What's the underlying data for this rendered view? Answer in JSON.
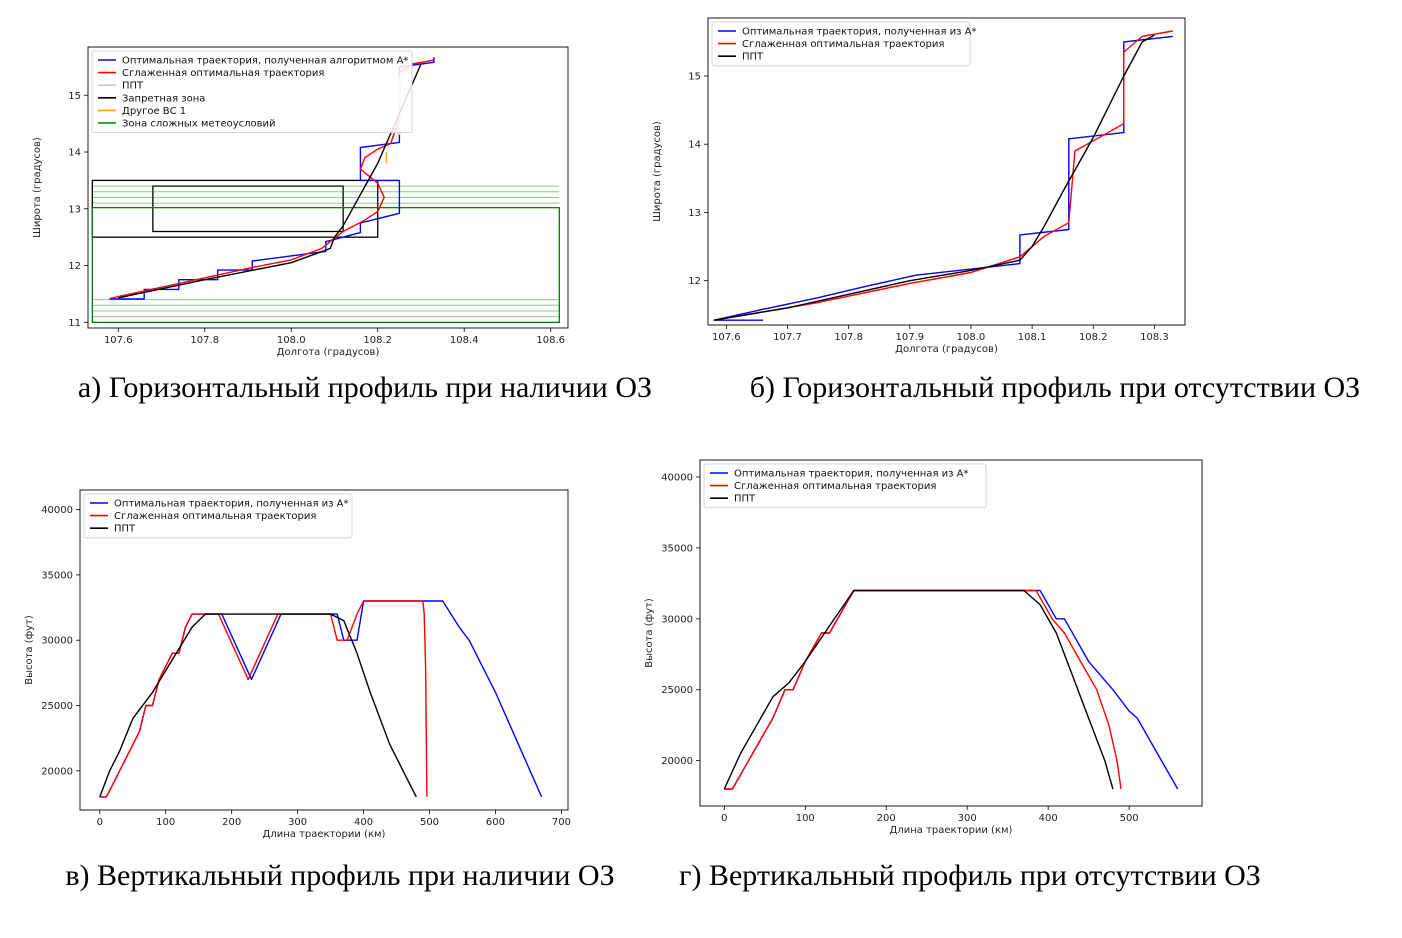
{
  "captions": {
    "a": "а) Горизонтальный профиль при наличии ОЗ",
    "b": "б) Горизонтальный профиль при отсутствии ОЗ",
    "c": "в) Вертикальный профиль при наличии ОЗ",
    "d": "г) Вертикальный профиль при отсутствии ОЗ"
  },
  "colors": {
    "blue": "#0000ff",
    "red": "#ff0000",
    "black": "#000000",
    "gray": "#c8c8c8",
    "orange": "#ffa500",
    "green": "#008000"
  },
  "chart_data": [
    {
      "id": "a",
      "type": "line",
      "xlabel": "Долгота (градусов)",
      "ylabel": "Широта (градусов)",
      "xlim": [
        107.53,
        108.64
      ],
      "ylim": [
        10.9,
        15.85
      ],
      "xticks": [
        107.6,
        107.8,
        108.0,
        108.2,
        108.4,
        108.6
      ],
      "xtick_labels": [
        "107.6",
        "107.8",
        "108.0",
        "108.2",
        "108.4",
        "108.6"
      ],
      "yticks": [
        11,
        12,
        13,
        14,
        15
      ],
      "ytick_labels": [
        "11",
        "12",
        "13",
        "14",
        "15"
      ],
      "legend_position": "top-left",
      "series": [
        {
          "name": "Оптимальная  траектория, полученная алгоритмом А*",
          "color": "#0000ff",
          "x": [
            107.58,
            107.66,
            107.66,
            107.74,
            107.74,
            107.83,
            107.83,
            107.91,
            107.91,
            108.08,
            108.08,
            108.16,
            108.16,
            108.25,
            108.25,
            108.16,
            108.16,
            108.25,
            108.25,
            108.33,
            108.33
          ],
          "y": [
            11.41,
            11.41,
            11.58,
            11.58,
            11.75,
            11.75,
            11.92,
            11.92,
            12.08,
            12.25,
            12.42,
            12.58,
            12.75,
            12.92,
            13.5,
            13.5,
            14.08,
            14.17,
            15.5,
            15.58,
            15.67
          ]
        },
        {
          "name": "Сглаженная оптимальная траектория",
          "color": "#ff0000",
          "x": [
            107.58,
            107.75,
            107.9,
            108.0,
            108.07,
            108.12,
            108.17,
            108.2,
            108.215,
            108.2,
            108.16,
            108.17,
            108.2,
            108.23,
            108.25,
            108.25,
            108.28,
            108.33
          ],
          "y": [
            11.42,
            11.7,
            11.95,
            12.1,
            12.3,
            12.6,
            12.8,
            12.95,
            13.2,
            13.45,
            13.7,
            13.9,
            14.05,
            14.15,
            14.6,
            15.4,
            15.55,
            15.62
          ]
        },
        {
          "name": "ППТ",
          "color": "#c8c8c8",
          "x": [
            108.25,
            108.25,
            108.28
          ],
          "y": [
            14.3,
            15.3,
            15.55
          ]
        },
        {
          "name": "Запретная зона",
          "color": "#000000",
          "x": [
            107.6,
            107.8,
            108.0,
            108.09,
            108.1,
            108.12,
            108.2,
            108.3
          ],
          "y": [
            11.43,
            11.75,
            12.05,
            12.3,
            12.5,
            12.7,
            13.8,
            15.55
          ]
        },
        {
          "name": "Другое ВС 1",
          "color": "#ffa500",
          "x": [
            108.22,
            108.22
          ],
          "y": [
            13.8,
            14.0
          ]
        },
        {
          "name": "Зона сложных метеоусловий",
          "color": "#008000",
          "x": [],
          "y": []
        }
      ],
      "shapes": [
        {
          "kind": "rect",
          "color": "#000000",
          "x0": 107.54,
          "x1": 108.2,
          "y0": 12.5,
          "y1": 13.5
        },
        {
          "kind": "rect",
          "color": "#000000",
          "x0": 107.68,
          "x1": 108.12,
          "y0": 12.6,
          "y1": 13.4
        },
        {
          "kind": "rect",
          "color": "#008000",
          "x0": 107.54,
          "x1": 108.62,
          "y0": 11.0,
          "y1": 13.02
        },
        {
          "kind": "hbands",
          "color": "#008000",
          "x0": 107.54,
          "x1": 108.62,
          "values": [
            11.1,
            11.2,
            11.3,
            11.4,
            13.1,
            13.2,
            13.3,
            13.4
          ]
        }
      ]
    },
    {
      "id": "b",
      "type": "line",
      "xlabel": "Долгота (градусов)",
      "ylabel": "Широта (градусов)",
      "xlim": [
        107.57,
        108.35
      ],
      "ylim": [
        11.35,
        15.85
      ],
      "xticks": [
        107.6,
        107.7,
        107.8,
        107.9,
        108.0,
        108.1,
        108.2,
        108.3
      ],
      "xtick_labels": [
        "107.6",
        "107.7",
        "107.8",
        "107.9",
        "108.0",
        "108.1",
        "108.2",
        "108.3"
      ],
      "yticks": [
        12,
        13,
        14,
        15
      ],
      "ytick_labels": [
        "12",
        "13",
        "14",
        "15"
      ],
      "legend_position": "top-left",
      "series": [
        {
          "name": "Оптимальная траектория, полученная из А*",
          "color": "#0000ff",
          "x": [
            107.66,
            107.58,
            107.66,
            107.66,
            107.75,
            107.75,
            107.83,
            107.83,
            107.91,
            107.91,
            108.08,
            108.08,
            108.16,
            108.16,
            108.25,
            108.25,
            108.33
          ],
          "y": [
            11.42,
            11.42,
            11.58,
            11.58,
            11.75,
            11.75,
            11.92,
            11.92,
            12.08,
            12.08,
            12.25,
            12.67,
            12.75,
            14.08,
            14.17,
            15.5,
            15.58
          ]
        },
        {
          "name": "Сглаженная оптимальная траектория",
          "color": "#ff0000",
          "x": [
            107.58,
            107.75,
            107.9,
            108.0,
            108.08,
            108.12,
            108.16,
            108.17,
            108.2,
            108.25,
            108.25,
            108.28,
            108.33
          ],
          "y": [
            11.42,
            11.68,
            11.96,
            12.12,
            12.35,
            12.65,
            12.85,
            13.9,
            14.05,
            14.3,
            15.35,
            15.58,
            15.66
          ]
        },
        {
          "name": "ППТ",
          "color": "#000000",
          "x": [
            107.58,
            107.7,
            107.8,
            107.9,
            108.0,
            108.08,
            108.1,
            108.12,
            108.15,
            108.2,
            108.25,
            108.28,
            108.3
          ],
          "y": [
            11.42,
            11.6,
            11.8,
            12.0,
            12.15,
            12.3,
            12.5,
            12.8,
            13.3,
            14.1,
            15.0,
            15.5,
            15.6
          ]
        }
      ]
    },
    {
      "id": "c",
      "type": "line",
      "xlabel": "Длина траектории (км)",
      "ylabel": "Высота (фут)",
      "xlim": [
        -30,
        710
      ],
      "ylim": [
        17000,
        41500
      ],
      "xticks": [
        0,
        100,
        200,
        300,
        400,
        500,
        600,
        700
      ],
      "xtick_labels": [
        "0",
        "100",
        "200",
        "300",
        "400",
        "500",
        "600",
        "700"
      ],
      "yticks": [
        20000,
        25000,
        30000,
        35000,
        40000
      ],
      "ytick_labels": [
        "20000",
        "25000",
        "30000",
        "35000",
        "40000"
      ],
      "legend_position": "top-left",
      "series": [
        {
          "name": "Оптимальная траектория, полученная из А*",
          "color": "#0000ff",
          "x": [
            0,
            10,
            20,
            40,
            60,
            70,
            80,
            90,
            110,
            120,
            130,
            140,
            160,
            185,
            230,
            275,
            360,
            370,
            390,
            400,
            520,
            545,
            560,
            600,
            670
          ],
          "y": [
            18000,
            18000,
            19000,
            21000,
            23000,
            25000,
            25000,
            27000,
            29000,
            29000,
            31000,
            32000,
            32000,
            32000,
            27000,
            32000,
            32000,
            30000,
            30000,
            33000,
            33000,
            31000,
            30000,
            26000,
            18000
          ]
        },
        {
          "name": "Сглаженная оптимальная траектория",
          "color": "#ff0000",
          "x": [
            0,
            10,
            20,
            40,
            60,
            70,
            80,
            90,
            110,
            120,
            130,
            140,
            160,
            180,
            225,
            270,
            350,
            360,
            375,
            390,
            400,
            490,
            492,
            494,
            496
          ],
          "y": [
            18000,
            18000,
            19000,
            21000,
            23000,
            25000,
            25000,
            27000,
            29000,
            29000,
            31000,
            32000,
            32000,
            32000,
            27000,
            32000,
            32000,
            30000,
            30000,
            32000,
            33000,
            33000,
            32000,
            28000,
            18000
          ]
        },
        {
          "name": "ППТ",
          "color": "#000000",
          "x": [
            0,
            15,
            30,
            50,
            80,
            110,
            140,
            160,
            200,
            250,
            300,
            350,
            370,
            390,
            410,
            440,
            470,
            480
          ],
          "y": [
            18000,
            20000,
            21500,
            24000,
            26000,
            28500,
            31000,
            32000,
            32000,
            32000,
            32000,
            32000,
            31500,
            29000,
            26000,
            22000,
            19000,
            18000
          ]
        }
      ]
    },
    {
      "id": "d",
      "type": "line",
      "xlabel": "Длина траектории (км)",
      "ylabel": "Высота (фут)",
      "xlim": [
        -30,
        590
      ],
      "ylim": [
        16800,
        41200
      ],
      "xticks": [
        0,
        100,
        200,
        300,
        400,
        500
      ],
      "xtick_labels": [
        "0",
        "100",
        "200",
        "300",
        "400",
        "500"
      ],
      "yticks": [
        20000,
        25000,
        30000,
        35000,
        40000
      ],
      "ytick_labels": [
        "20000",
        "25000",
        "30000",
        "35000",
        "40000"
      ],
      "legend_position": "top-left",
      "series": [
        {
          "name": "Оптимальная траектория, полученная из А*",
          "color": "#0000ff",
          "x": [
            0,
            10,
            20,
            40,
            60,
            75,
            85,
            100,
            120,
            130,
            160,
            300,
            390,
            410,
            420,
            430,
            450,
            480,
            500,
            510,
            560
          ],
          "y": [
            18000,
            18000,
            19000,
            21000,
            23000,
            25000,
            25000,
            27000,
            29000,
            29000,
            32000,
            32000,
            32000,
            30000,
            30000,
            29000,
            27000,
            25000,
            23500,
            23000,
            18000
          ]
        },
        {
          "name": "Сглаженная оптимальная траектория",
          "color": "#ff0000",
          "x": [
            0,
            10,
            20,
            40,
            60,
            75,
            85,
            100,
            120,
            130,
            160,
            300,
            385,
            405,
            420,
            440,
            460,
            475,
            485,
            490
          ],
          "y": [
            18000,
            18000,
            19000,
            21000,
            23000,
            25000,
            25000,
            27000,
            29000,
            29000,
            32000,
            32000,
            32000,
            30000,
            29000,
            27000,
            25000,
            22500,
            20000,
            18000
          ]
        },
        {
          "name": "ППТ",
          "color": "#000000",
          "x": [
            0,
            20,
            40,
            60,
            80,
            100,
            130,
            160,
            200,
            300,
            370,
            390,
            410,
            430,
            450,
            470,
            480
          ],
          "y": [
            18000,
            20500,
            22500,
            24500,
            25500,
            27000,
            29500,
            32000,
            32000,
            32000,
            32000,
            31000,
            29000,
            26000,
            23000,
            20000,
            18000
          ]
        }
      ]
    }
  ]
}
